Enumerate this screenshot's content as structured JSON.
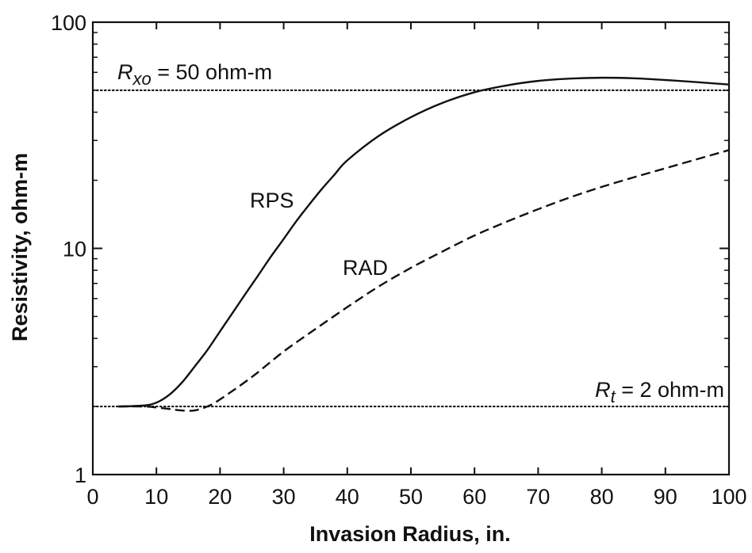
{
  "chart_data": {
    "type": "line",
    "xlabel": "Invasion Radius, in.",
    "ylabel": "Resistivity, ohm-m",
    "xlim": [
      0,
      100
    ],
    "ylim": [
      1,
      100
    ],
    "yscale": "log",
    "xticks": [
      0,
      10,
      20,
      30,
      40,
      50,
      60,
      70,
      80,
      90,
      100
    ],
    "xtick_labels": [
      "0",
      "10",
      "20",
      "30",
      "40",
      "50",
      "60",
      "70",
      "80",
      "90",
      "100"
    ],
    "yticks": [
      1,
      10,
      100
    ],
    "ytick_labels": [
      "1",
      "10",
      "100"
    ],
    "grid": false,
    "legend": "none",
    "series": [
      {
        "name": "RPS",
        "style": "solid",
        "x": [
          4,
          8,
          10,
          12,
          14,
          16,
          18,
          20,
          22,
          24,
          26,
          28,
          30,
          32,
          34,
          36,
          38,
          40,
          45,
          50,
          55,
          60,
          65,
          70,
          75,
          80,
          85,
          90,
          95,
          100
        ],
        "y": [
          2.0,
          2.02,
          2.08,
          2.25,
          2.55,
          3.0,
          3.55,
          4.3,
          5.2,
          6.3,
          7.6,
          9.2,
          11.0,
          13.2,
          15.6,
          18.3,
          21.2,
          24.5,
          31.5,
          38.0,
          44.0,
          49.0,
          52.5,
          55.0,
          56.3,
          56.8,
          56.5,
          55.5,
          54.3,
          53.0
        ]
      },
      {
        "name": "RAD",
        "style": "dashed",
        "x": [
          4,
          8,
          10,
          12,
          14,
          16,
          18,
          20,
          25,
          30,
          35,
          40,
          45,
          50,
          55,
          60,
          65,
          70,
          75,
          80,
          85,
          90,
          95,
          100
        ],
        "y": [
          2.0,
          2.0,
          1.98,
          1.95,
          1.92,
          1.92,
          2.0,
          2.15,
          2.7,
          3.5,
          4.4,
          5.5,
          6.8,
          8.2,
          9.7,
          11.4,
          13.1,
          14.9,
          16.8,
          18.7,
          20.6,
          22.6,
          24.8,
          27.2
        ]
      }
    ],
    "reference_lines": [
      {
        "y": 50,
        "style": "dotted",
        "label_symbol": "R",
        "label_subscript": "xo",
        "label_text": " = 50 ohm-m"
      },
      {
        "y": 2,
        "style": "dotted",
        "label_symbol": "R",
        "label_subscript": "t",
        "label_text": " = 2 ohm-m"
      }
    ],
    "annotations": [
      {
        "text": "RPS",
        "series": "RPS"
      },
      {
        "text": "RAD",
        "series": "RAD"
      }
    ]
  }
}
